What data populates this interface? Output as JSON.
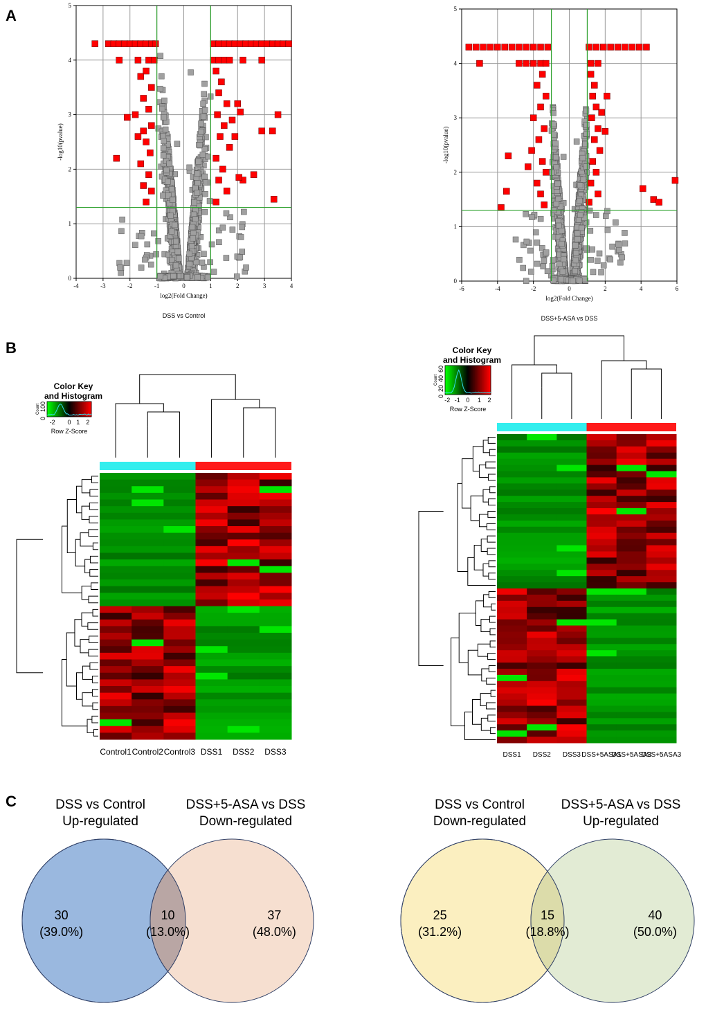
{
  "panel_labels": {
    "a": "A",
    "b": "B",
    "c": "C"
  },
  "chart_data": [
    {
      "type": "scatter",
      "subtype": "volcano",
      "title": "DSS vs Control",
      "xlabel": "log2(Fold Change)",
      "ylabel": "-log10(pvalue)",
      "xlim": [
        -4,
        4
      ],
      "ylim": [
        0,
        5
      ],
      "xticks": [
        -4,
        -3,
        -2,
        -1,
        0,
        1,
        2,
        3,
        4
      ],
      "yticks": [
        0,
        1,
        2,
        3,
        4,
        5
      ],
      "thresholds": {
        "x": [
          -1,
          1
        ],
        "y": 1.3
      },
      "grid": true,
      "colors": {
        "significant": "#ff0000",
        "nonsignificant": "#a0a0a0",
        "threshold": "#2ca02c"
      },
      "significant_points": [
        [
          -3.3,
          4.3
        ],
        [
          -2.8,
          4.3
        ],
        [
          -2.6,
          4.3
        ],
        [
          -2.4,
          4.3
        ],
        [
          -2.2,
          4.3
        ],
        [
          -2.0,
          4.3
        ],
        [
          -1.8,
          4.3
        ],
        [
          -1.6,
          4.3
        ],
        [
          -1.4,
          4.3
        ],
        [
          -1.2,
          4.3
        ],
        [
          -1.05,
          4.3
        ],
        [
          1.1,
          4.3
        ],
        [
          1.3,
          4.3
        ],
        [
          1.5,
          4.3
        ],
        [
          1.7,
          4.3
        ],
        [
          1.9,
          4.3
        ],
        [
          2.1,
          4.3
        ],
        [
          2.3,
          4.3
        ],
        [
          2.5,
          4.3
        ],
        [
          2.7,
          4.3
        ],
        [
          2.9,
          4.3
        ],
        [
          3.1,
          4.3
        ],
        [
          3.3,
          4.3
        ],
        [
          3.5,
          4.3
        ],
        [
          3.7,
          4.3
        ],
        [
          3.9,
          4.3
        ],
        [
          -2.4,
          4.0
        ],
        [
          -1.7,
          4.0
        ],
        [
          -1.3,
          4.0
        ],
        [
          -1.1,
          4.0
        ],
        [
          1.1,
          4.0
        ],
        [
          1.3,
          4.0
        ],
        [
          1.5,
          4.0
        ],
        [
          1.7,
          4.0
        ],
        [
          2.2,
          4.0
        ],
        [
          2.9,
          4.0
        ],
        [
          -1.4,
          3.8
        ],
        [
          -1.6,
          3.7
        ],
        [
          -1.2,
          3.5
        ],
        [
          -1.5,
          3.3
        ],
        [
          -1.3,
          3.1
        ],
        [
          -1.8,
          3.0
        ],
        [
          -2.1,
          2.95
        ],
        [
          -1.2,
          2.8
        ],
        [
          -1.5,
          2.7
        ],
        [
          -1.4,
          2.5
        ],
        [
          -1.25,
          2.3
        ],
        [
          -1.6,
          2.1
        ],
        [
          -1.3,
          1.9
        ],
        [
          -1.5,
          1.7
        ],
        [
          -1.2,
          1.6
        ],
        [
          -1.4,
          1.4
        ],
        [
          -2.5,
          2.2
        ],
        [
          -1.7,
          2.6
        ],
        [
          1.2,
          3.8
        ],
        [
          1.4,
          3.6
        ],
        [
          1.3,
          3.4
        ],
        [
          1.6,
          3.2
        ],
        [
          1.25,
          3.0
        ],
        [
          1.5,
          2.8
        ],
        [
          1.35,
          2.6
        ],
        [
          1.7,
          2.4
        ],
        [
          1.2,
          2.2
        ],
        [
          1.45,
          2.0
        ],
        [
          1.3,
          1.8
        ],
        [
          1.6,
          1.6
        ],
        [
          1.2,
          1.4
        ],
        [
          1.8,
          2.9
        ],
        [
          2.0,
          3.2
        ],
        [
          2.1,
          3.05
        ],
        [
          2.2,
          1.8
        ],
        [
          2.6,
          1.9
        ],
        [
          2.9,
          2.7
        ],
        [
          3.3,
          2.7
        ],
        [
          3.5,
          3.0
        ],
        [
          3.35,
          1.45
        ],
        [
          2.05,
          1.85
        ],
        [
          1.9,
          2.6
        ]
      ],
      "nonsignificant_points_description": "dense grey cloud forming a V shape between x -2.3 and 3.6, y 0 to 4.3"
    },
    {
      "type": "scatter",
      "subtype": "volcano",
      "title": "DSS+5-ASA vs DSS",
      "xlabel": "log2(Fold Change)",
      "ylabel": "-log10(pvalue)",
      "xlim": [
        -6,
        6
      ],
      "ylim": [
        0,
        5
      ],
      "xticks": [
        -6,
        -4,
        -2,
        0,
        2,
        4,
        6
      ],
      "yticks": [
        0,
        1,
        2,
        3,
        4,
        5
      ],
      "thresholds": {
        "x": [
          -1,
          1
        ],
        "y": 1.3
      },
      "grid": true,
      "colors": {
        "significant": "#ff0000",
        "nonsignificant": "#a0a0a0",
        "threshold": "#2ca02c"
      },
      "significant_points": [
        [
          -5.6,
          4.3
        ],
        [
          -5.2,
          4.3
        ],
        [
          -4.8,
          4.3
        ],
        [
          -4.4,
          4.3
        ],
        [
          -4.0,
          4.3
        ],
        [
          -3.6,
          4.3
        ],
        [
          -3.2,
          4.3
        ],
        [
          -2.8,
          4.3
        ],
        [
          -2.4,
          4.3
        ],
        [
          -2.0,
          4.3
        ],
        [
          -1.6,
          4.3
        ],
        [
          -1.2,
          4.3
        ],
        [
          1.1,
          4.3
        ],
        [
          1.5,
          4.3
        ],
        [
          1.9,
          4.3
        ],
        [
          2.3,
          4.3
        ],
        [
          2.7,
          4.3
        ],
        [
          3.1,
          4.3
        ],
        [
          3.5,
          4.3
        ],
        [
          3.9,
          4.3
        ],
        [
          4.3,
          4.3
        ],
        [
          -5.0,
          4.0
        ],
        [
          -2.8,
          4.0
        ],
        [
          -2.4,
          4.0
        ],
        [
          -2.0,
          4.0
        ],
        [
          -1.6,
          4.0
        ],
        [
          -1.3,
          4.0
        ],
        [
          1.2,
          4.0
        ],
        [
          1.6,
          4.0
        ],
        [
          -1.5,
          3.8
        ],
        [
          -1.8,
          3.6
        ],
        [
          -1.3,
          3.4
        ],
        [
          -1.6,
          3.2
        ],
        [
          -2.0,
          3.0
        ],
        [
          -1.4,
          2.8
        ],
        [
          -1.7,
          2.6
        ],
        [
          -2.1,
          2.4
        ],
        [
          -1.5,
          2.2
        ],
        [
          -1.3,
          2.0
        ],
        [
          -1.8,
          1.8
        ],
        [
          -1.6,
          1.6
        ],
        [
          -1.4,
          1.4
        ],
        [
          -3.4,
          2.3
        ],
        [
          -3.5,
          1.65
        ],
        [
          -2.3,
          2.1
        ],
        [
          -3.8,
          1.35
        ],
        [
          1.2,
          3.8
        ],
        [
          1.4,
          3.6
        ],
        [
          1.3,
          3.4
        ],
        [
          1.5,
          3.2
        ],
        [
          1.25,
          3.0
        ],
        [
          1.6,
          2.8
        ],
        [
          1.4,
          2.6
        ],
        [
          1.7,
          2.4
        ],
        [
          1.3,
          2.2
        ],
        [
          1.5,
          2.0
        ],
        [
          1.2,
          1.8
        ],
        [
          1.6,
          1.6
        ],
        [
          1.1,
          1.45
        ],
        [
          2.0,
          2.75
        ],
        [
          2.1,
          3.4
        ],
        [
          1.8,
          3.1
        ],
        [
          4.1,
          1.7
        ],
        [
          4.7,
          1.5
        ],
        [
          5.0,
          1.45
        ],
        [
          5.9,
          1.85
        ]
      ],
      "nonsignificant_points_description": "dense grey cloud forming a V shape between x -4 and 6, y 0 to 4.3"
    },
    {
      "type": "heatmap",
      "columns": [
        "Control1",
        "Control2",
        "Control3",
        "DSS1",
        "DSS2",
        "DSS3"
      ],
      "groups": [
        {
          "color": "#33eeee",
          "columns": 3
        },
        {
          "color": "#ff1a1a",
          "columns": 3
        }
      ],
      "color_key": {
        "title_line1": "Color Key",
        "title_line2": "and Histogram",
        "xlabel": "Row Z-Score",
        "ylabel": "Count",
        "ticks": [
          "-2",
          "0",
          "1",
          "2"
        ],
        "yticks": [
          "0",
          "100"
        ],
        "scale": [
          "#00ff00",
          "#000000",
          "#ff0000"
        ]
      },
      "rows": 40
    },
    {
      "type": "heatmap",
      "columns": [
        "DSS1",
        "DSS2",
        "DSS3",
        "DSS+5ASA1",
        "DSS+5ASA2",
        "DSS+5ASA3"
      ],
      "groups": [
        {
          "color": "#33eeee",
          "columns": 3
        },
        {
          "color": "#ff1a1a",
          "columns": 3
        }
      ],
      "color_key": {
        "title_line1": "Color Key",
        "title_line2": "and Histogram",
        "xlabel": "Row Z-Score",
        "ylabel": "Count",
        "ticks": [
          "-2",
          "-1",
          "0",
          "1",
          "2"
        ],
        "yticks": [
          "0",
          "20",
          "40",
          "60"
        ],
        "scale": [
          "#00ff00",
          "#000000",
          "#ff0000"
        ]
      },
      "rows": 50
    },
    {
      "type": "venn",
      "sets": [
        {
          "label_line1": "DSS vs Control",
          "label_line2": "Up-regulated",
          "only": 30,
          "only_pct": "(39.0%)",
          "color": "#9ab8df"
        },
        {
          "label_line1": "DSS+5-ASA vs DSS",
          "label_line2": "Down-regulated",
          "only": 37,
          "only_pct": "(48.0%)",
          "color": "#f3d4c0"
        }
      ],
      "intersection": 10,
      "intersection_pct": "(13.0%)"
    },
    {
      "type": "venn",
      "sets": [
        {
          "label_line1": "DSS vs Control",
          "label_line2": "Down-regulated",
          "only": 25,
          "only_pct": "(31.2%)",
          "color": "#fbefc0"
        },
        {
          "label_line1": "DSS+5-ASA vs DSS",
          "label_line2": "Up-regulated",
          "only": 40,
          "only_pct": "(50.0%)",
          "color": "#d8e4c6"
        }
      ],
      "intersection": 15,
      "intersection_pct": "(18.8%)"
    }
  ]
}
